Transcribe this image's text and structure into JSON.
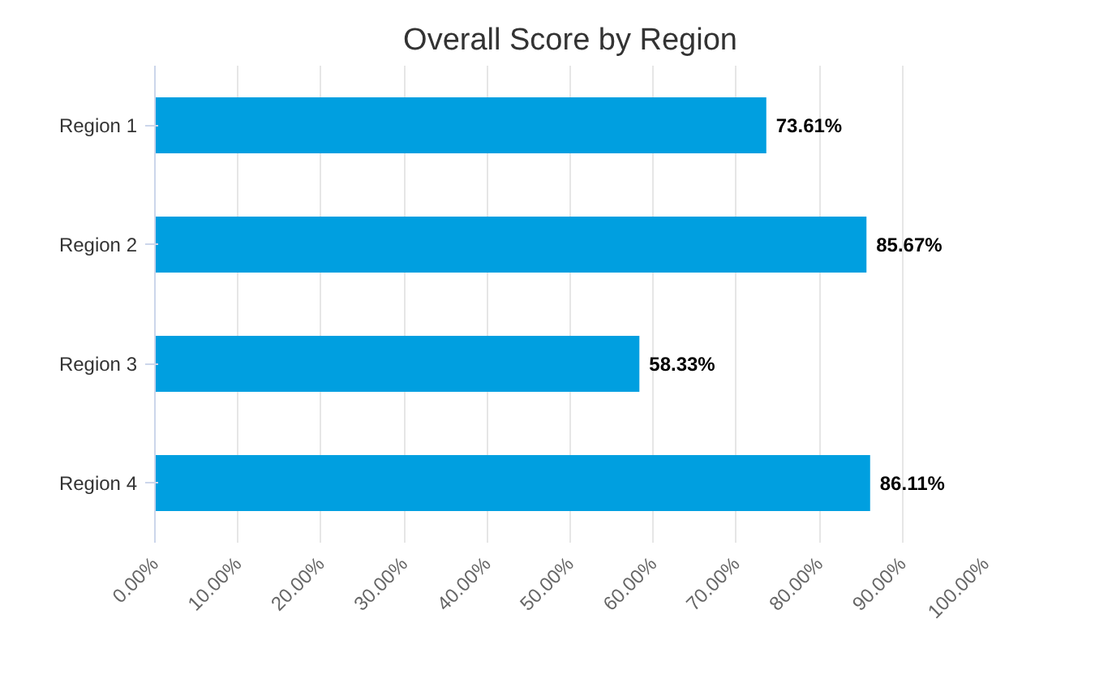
{
  "chart_data": {
    "type": "bar",
    "orientation": "horizontal",
    "title": "Overall Score by Region",
    "categories": [
      "Region 1",
      "Region 2",
      "Region 3",
      "Region 4"
    ],
    "values": [
      73.61,
      85.67,
      58.33,
      86.11
    ],
    "value_labels": [
      "73.61%",
      "85.67%",
      "58.33%",
      "86.11%"
    ],
    "color": "#009fe0",
    "xlim": [
      0,
      100
    ],
    "xticks": [
      {
        "value": 0,
        "label": "0.00%"
      },
      {
        "value": 10,
        "label": "10.00%"
      },
      {
        "value": 20,
        "label": "20.00%"
      },
      {
        "value": 30,
        "label": "30.00%"
      },
      {
        "value": 40,
        "label": "40.00%"
      },
      {
        "value": 50,
        "label": "50.00%"
      },
      {
        "value": 60,
        "label": "60.00%"
      },
      {
        "value": 70,
        "label": "70.00%"
      },
      {
        "value": 80,
        "label": "80.00%"
      },
      {
        "value": 90,
        "label": "90.00%"
      },
      {
        "value": 100,
        "label": "100.00%"
      }
    ],
    "grid": "x"
  }
}
